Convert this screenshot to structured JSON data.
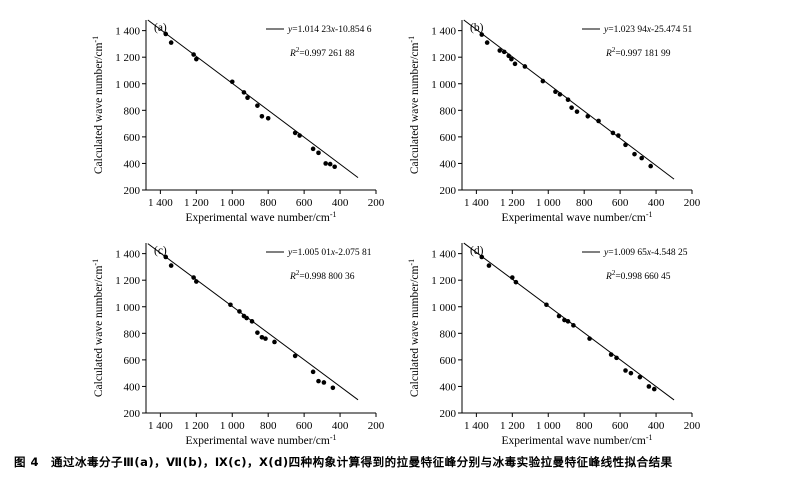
{
  "figure": {
    "caption": "图 4　通过冰毒分子Ⅲ(a)，Ⅶ(b)，Ⅸ(c)，Ⅹ(d)四种构象计算得到的拉曼特征峰分别与冰毒实验拉曼特征峰线性拟合结果"
  },
  "chart_data": [
    {
      "type": "scatter",
      "panel_label": "(a)",
      "xlabel": "Experimental wave number/cm",
      "xlabel_sup": "-1",
      "ylabel": "Calculated wave number/cm",
      "ylabel_sup": "-1",
      "xlim": [
        1480,
        200
      ],
      "ylim": [
        200,
        1480
      ],
      "x_ticks": [
        1400,
        1200,
        1000,
        800,
        600,
        400,
        200
      ],
      "x_tick_labels": [
        "1 400",
        "1 200",
        "1 000",
        "800",
        "600",
        "400",
        "200"
      ],
      "y_ticks": [
        200,
        400,
        600,
        800,
        1000,
        1200,
        1400
      ],
      "y_tick_labels": [
        "200",
        "400",
        "600",
        "800",
        "1 000",
        "1 200",
        "1 400"
      ],
      "fit": {
        "slope": 1.01423,
        "intercept": -10.8546,
        "x_range": [
          1470,
          300
        ]
      },
      "equation": {
        "y": "y",
        "eq": "=1.014 23",
        "x": "x",
        "rest": "-10.854 6"
      },
      "r2": {
        "r": "R",
        "sup": "2",
        "rest": "=0.997 261 88"
      },
      "points": [
        [
          1370,
          1375
        ],
        [
          1340,
          1310
        ],
        [
          1215,
          1220
        ],
        [
          1200,
          1185
        ],
        [
          1000,
          1015
        ],
        [
          935,
          935
        ],
        [
          915,
          895
        ],
        [
          860,
          835
        ],
        [
          835,
          755
        ],
        [
          800,
          740
        ],
        [
          650,
          630
        ],
        [
          625,
          610
        ],
        [
          550,
          510
        ],
        [
          520,
          480
        ],
        [
          480,
          400
        ],
        [
          455,
          395
        ],
        [
          430,
          375
        ]
      ]
    },
    {
      "type": "scatter",
      "panel_label": "(b)",
      "xlabel": "Experimental wave number/cm",
      "xlabel_sup": "-1",
      "ylabel": "Calculated wave number/cm",
      "ylabel_sup": "-1",
      "xlim": [
        1480,
        200
      ],
      "ylim": [
        200,
        1480
      ],
      "x_ticks": [
        1400,
        1200,
        1000,
        800,
        600,
        400,
        200
      ],
      "x_tick_labels": [
        "1 400",
        "1 200",
        "1 000",
        "800",
        "600",
        "400",
        "200"
      ],
      "y_ticks": [
        200,
        400,
        600,
        800,
        1000,
        1200,
        1400
      ],
      "y_tick_labels": [
        "200",
        "400",
        "600",
        "800",
        "1 000",
        "1 200",
        "1 400"
      ],
      "fit": {
        "slope": 1.02394,
        "intercept": -25.47451,
        "x_range": [
          1470,
          300
        ]
      },
      "equation": {
        "y": "y",
        "eq": "=1.023 94",
        "x": "x",
        "rest": "-25.474 51"
      },
      "r2": {
        "r": "R",
        "sup": "2",
        "rest": "=0.997 181 99"
      },
      "points": [
        [
          1370,
          1370
        ],
        [
          1340,
          1310
        ],
        [
          1270,
          1250
        ],
        [
          1245,
          1240
        ],
        [
          1220,
          1210
        ],
        [
          1205,
          1185
        ],
        [
          1185,
          1150
        ],
        [
          1130,
          1130
        ],
        [
          1030,
          1020
        ],
        [
          960,
          940
        ],
        [
          935,
          920
        ],
        [
          890,
          880
        ],
        [
          870,
          820
        ],
        [
          840,
          790
        ],
        [
          780,
          755
        ],
        [
          720,
          720
        ],
        [
          640,
          630
        ],
        [
          610,
          610
        ],
        [
          570,
          540
        ],
        [
          520,
          470
        ],
        [
          480,
          440
        ],
        [
          430,
          380
        ]
      ]
    },
    {
      "type": "scatter",
      "panel_label": "(c)",
      "xlabel": "Experimental wave number/cm",
      "xlabel_sup": "-1",
      "ylabel": "Calculated wave number/cm",
      "ylabel_sup": "-1",
      "xlim": [
        1480,
        200
      ],
      "ylim": [
        200,
        1480
      ],
      "x_ticks": [
        1400,
        1200,
        1000,
        800,
        600,
        400,
        200
      ],
      "x_tick_labels": [
        "1 400",
        "1 200",
        "1 000",
        "800",
        "600",
        "400",
        "200"
      ],
      "y_ticks": [
        200,
        400,
        600,
        800,
        1000,
        1200,
        1400
      ],
      "y_tick_labels": [
        "200",
        "400",
        "600",
        "800",
        "1 000",
        "1 200",
        "1 400"
      ],
      "fit": {
        "slope": 1.00501,
        "intercept": -2.07581,
        "x_range": [
          1470,
          300
        ]
      },
      "equation": {
        "y": "y",
        "eq": "=1.005 01",
        "x": "x",
        "rest": "-2.075 81"
      },
      "r2": {
        "r": "R",
        "sup": "2",
        "rest": "=0.998 800 36"
      },
      "points": [
        [
          1370,
          1375
        ],
        [
          1340,
          1310
        ],
        [
          1215,
          1220
        ],
        [
          1200,
          1190
        ],
        [
          1010,
          1015
        ],
        [
          960,
          965
        ],
        [
          935,
          930
        ],
        [
          920,
          915
        ],
        [
          890,
          890
        ],
        [
          860,
          805
        ],
        [
          835,
          770
        ],
        [
          815,
          760
        ],
        [
          765,
          735
        ],
        [
          650,
          630
        ],
        [
          550,
          510
        ],
        [
          520,
          440
        ],
        [
          490,
          430
        ],
        [
          440,
          390
        ]
      ]
    },
    {
      "type": "scatter",
      "panel_label": "(d)",
      "xlabel": "Experimental wave number/cm",
      "xlabel_sup": "-1",
      "ylabel": "Calculated wave number/cm",
      "ylabel_sup": "-1",
      "xlim": [
        1480,
        200
      ],
      "ylim": [
        200,
        1480
      ],
      "x_ticks": [
        1400,
        1200,
        1000,
        800,
        600,
        400,
        200
      ],
      "x_tick_labels": [
        "1 400",
        "1 200",
        "1 000",
        "800",
        "600",
        "400",
        "200"
      ],
      "y_ticks": [
        200,
        400,
        600,
        800,
        1000,
        1200,
        1400
      ],
      "y_tick_labels": [
        "200",
        "400",
        "600",
        "800",
        "1 000",
        "1 200",
        "1 400"
      ],
      "fit": {
        "slope": 1.00965,
        "intercept": -4.54825,
        "x_range": [
          1470,
          300
        ]
      },
      "equation": {
        "y": "y",
        "eq": "=1.009 65",
        "x": "x",
        "rest": "-4.548 25"
      },
      "r2": {
        "r": "R",
        "sup": "2",
        "rest": "=0.998 660 45"
      },
      "points": [
        [
          1370,
          1375
        ],
        [
          1330,
          1310
        ],
        [
          1200,
          1220
        ],
        [
          1180,
          1185
        ],
        [
          1010,
          1015
        ],
        [
          940,
          930
        ],
        [
          910,
          900
        ],
        [
          890,
          890
        ],
        [
          860,
          860
        ],
        [
          770,
          760
        ],
        [
          650,
          640
        ],
        [
          620,
          615
        ],
        [
          570,
          520
        ],
        [
          540,
          500
        ],
        [
          490,
          470
        ],
        [
          440,
          400
        ],
        [
          410,
          380
        ]
      ]
    }
  ]
}
